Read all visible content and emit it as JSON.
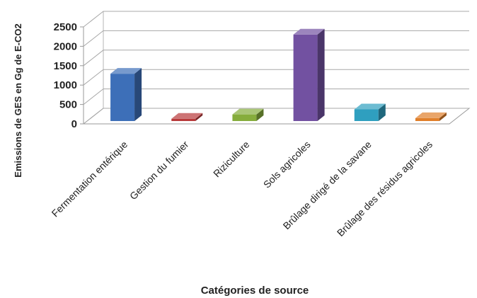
{
  "chart_data": {
    "type": "bar",
    "style": "3d-column",
    "title": "",
    "xlabel": "Catégories de source",
    "ylabel": "Emissions de GES en Gg de E-CO2",
    "ylim": [
      0,
      2500
    ],
    "yticks": [
      "0",
      "500",
      "1000",
      "1500",
      "2000",
      "2500"
    ],
    "grid": true,
    "legend": "none",
    "categories": [
      "Fermentation entérique",
      "Gestion du fumier",
      "Riziculture",
      "Sols agricoles",
      "Brûlage dirigé de la savane",
      "Brûlage des résidus agricoles"
    ],
    "values": [
      1220,
      60,
      170,
      2230,
      300,
      75
    ],
    "colors": [
      "#3d6fb8",
      "#b8393a",
      "#86ad3c",
      "#7251a1",
      "#2f9fbf",
      "#e07f2a"
    ]
  }
}
